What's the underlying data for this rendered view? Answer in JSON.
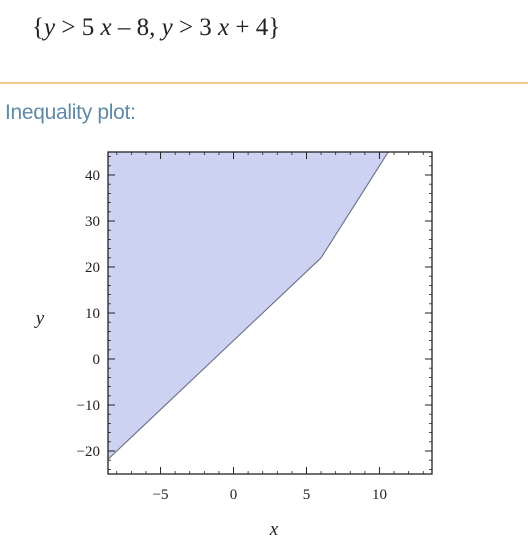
{
  "input": {
    "open_brace": "{",
    "ineq1": {
      "lhs": "y",
      "op": ">",
      "coef": "5",
      "var": "x",
      "rest": "– 8,"
    },
    "ineq2": {
      "lhs": "y",
      "op": ">",
      "coef": "3",
      "var": "x",
      "rest": "+ 4"
    },
    "close_brace": "}"
  },
  "section": {
    "title": "Inequality plot:"
  },
  "colors": {
    "fill": "#cdd2f3",
    "boundary": "#6b6f8a",
    "divider": "#f6c98a",
    "title": "#5f8aa6"
  },
  "chart_data": {
    "type": "area",
    "title": "",
    "xlabel": "x",
    "ylabel": "y",
    "xlim": [
      -8.6,
      13.6
    ],
    "ylim": [
      -25,
      45
    ],
    "x_ticks": [
      -5,
      0,
      5,
      10
    ],
    "x_tick_labels": [
      "−5",
      "0",
      "5",
      "10"
    ],
    "y_ticks": [
      -20,
      -10,
      0,
      10,
      20,
      30,
      40
    ],
    "y_tick_labels": [
      "−20",
      "−10",
      "0",
      "10",
      "20",
      "30",
      "40"
    ],
    "boundaries": [
      {
        "expression": "y = 3x + 4",
        "x": [
          -8.6,
          6
        ]
      },
      {
        "expression": "y = 5x − 8",
        "x": [
          6,
          10.6
        ]
      }
    ],
    "region_vertices": [
      {
        "x": -8.6,
        "y": -21.8
      },
      {
        "x": 6,
        "y": 22
      },
      {
        "x": 10.6,
        "y": 45
      },
      {
        "x": -8.6,
        "y": 45
      }
    ],
    "grid": false,
    "legend": "none"
  }
}
